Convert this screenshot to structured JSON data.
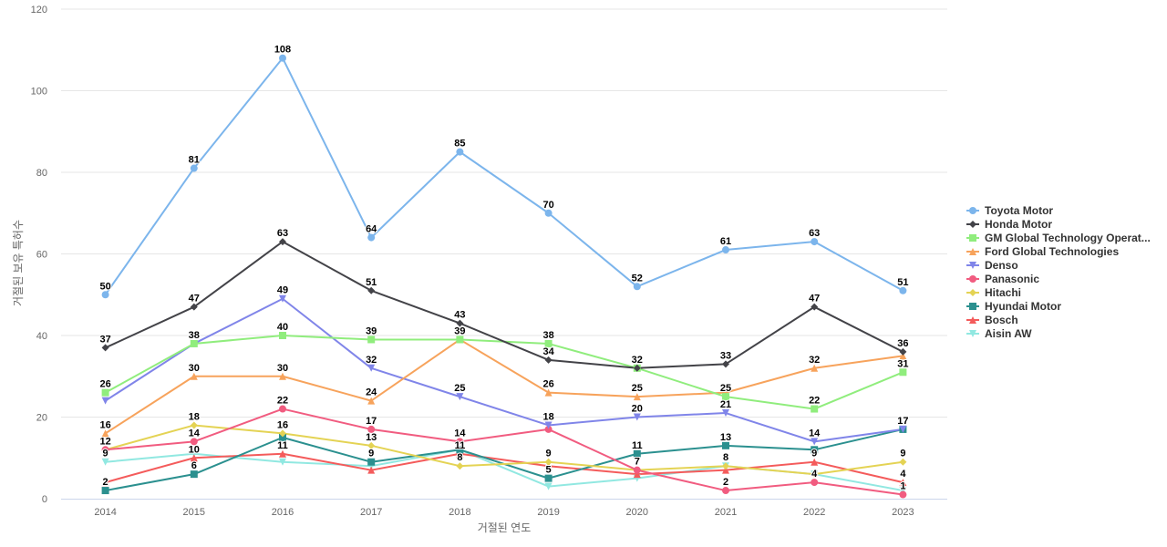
{
  "chart_data": {
    "type": "line",
    "xlabel": "거절된 연도",
    "ylabel": "거절된 보유 특허수",
    "ylim": [
      0,
      120
    ],
    "yticks": [
      0,
      20,
      40,
      60,
      80,
      100,
      120
    ],
    "categories": [
      "2014",
      "2015",
      "2016",
      "2017",
      "2018",
      "2019",
      "2020",
      "2021",
      "2022",
      "2023"
    ],
    "grid": "horizontal",
    "legend_position": "right",
    "series": [
      {
        "name": "Toyota Motor",
        "color": "#7cb5ec",
        "marker": "circle",
        "values": [
          50,
          81,
          108,
          64,
          85,
          70,
          52,
          61,
          63,
          51
        ]
      },
      {
        "name": "Honda Motor",
        "color": "#434348",
        "marker": "diamond",
        "values": [
          37,
          47,
          63,
          51,
          43,
          34,
          32,
          33,
          47,
          36
        ]
      },
      {
        "name": "GM Global Technology Operat...",
        "color": "#90ed7d",
        "marker": "square",
        "values": [
          26,
          38,
          40,
          39,
          39,
          38,
          32,
          25,
          22,
          31
        ]
      },
      {
        "name": "Ford Global Technologies",
        "color": "#f7a35c",
        "marker": "triangle",
        "values": [
          16,
          30,
          30,
          24,
          39,
          26,
          25,
          26,
          32,
          35
        ]
      },
      {
        "name": "Denso",
        "color": "#8085e9",
        "marker": "triangle-down",
        "values": [
          24,
          38,
          49,
          32,
          25,
          18,
          20,
          21,
          14,
          17
        ]
      },
      {
        "name": "Panasonic",
        "color": "#f15c80",
        "marker": "circle",
        "values": [
          12,
          14,
          22,
          17,
          14,
          17,
          7,
          2,
          4,
          1
        ]
      },
      {
        "name": "Hitachi",
        "color": "#e4d354",
        "marker": "diamond",
        "values": [
          12,
          18,
          16,
          13,
          8,
          9,
          7,
          8,
          6,
          9
        ]
      },
      {
        "name": "Hyundai Motor",
        "color": "#2b908f",
        "marker": "square",
        "values": [
          2,
          6,
          15,
          9,
          12,
          5,
          11,
          13,
          12,
          17
        ]
      },
      {
        "name": "Bosch",
        "color": "#f45b5b",
        "marker": "triangle",
        "values": [
          4,
          10,
          11,
          7,
          11,
          8,
          6,
          7,
          9,
          4
        ]
      },
      {
        "name": "Aisin AW",
        "color": "#91e8e1",
        "marker": "triangle-down",
        "values": [
          9,
          11,
          9,
          8,
          12,
          3,
          5,
          8,
          6,
          2
        ]
      }
    ],
    "data_labels": [
      {
        "x": "2014",
        "y": 50,
        "text": "50"
      },
      {
        "x": "2015",
        "y": 81,
        "text": "81"
      },
      {
        "x": "2016",
        "y": 108,
        "text": "108"
      },
      {
        "x": "2017",
        "y": 64,
        "text": "64"
      },
      {
        "x": "2018",
        "y": 85,
        "text": "85"
      },
      {
        "x": "2019",
        "y": 70,
        "text": "70"
      },
      {
        "x": "2020",
        "y": 52,
        "text": "52"
      },
      {
        "x": "2021",
        "y": 61,
        "text": "61"
      },
      {
        "x": "2022",
        "y": 63,
        "text": "63"
      },
      {
        "x": "2023",
        "y": 51,
        "text": "51"
      },
      {
        "x": "2014",
        "y": 37,
        "text": "37"
      },
      {
        "x": "2015",
        "y": 47,
        "text": "47"
      },
      {
        "x": "2016",
        "y": 63,
        "text": "63"
      },
      {
        "x": "2017",
        "y": 51,
        "text": "51"
      },
      {
        "x": "2018",
        "y": 43,
        "text": "43"
      },
      {
        "x": "2019",
        "y": 34,
        "text": "34"
      },
      {
        "x": "2020",
        "y": 32,
        "text": "32"
      },
      {
        "x": "2021",
        "y": 33,
        "text": "33"
      },
      {
        "x": "2022",
        "y": 47,
        "text": "47"
      },
      {
        "x": "2023",
        "y": 36,
        "text": "36"
      },
      {
        "x": "2014",
        "y": 26,
        "text": "26"
      },
      {
        "x": "2015",
        "y": 38,
        "text": "38"
      },
      {
        "x": "2016",
        "y": 40,
        "text": "40"
      },
      {
        "x": "2017",
        "y": 39,
        "text": "39"
      },
      {
        "x": "2018",
        "y": 39,
        "text": "39"
      },
      {
        "x": "2019",
        "y": 38,
        "text": "38"
      },
      {
        "x": "2021",
        "y": 25,
        "text": "25"
      },
      {
        "x": "2022",
        "y": 22,
        "text": "22"
      },
      {
        "x": "2023",
        "y": 31,
        "text": "31"
      },
      {
        "x": "2014",
        "y": 16,
        "text": "16"
      },
      {
        "x": "2015",
        "y": 30,
        "text": "30"
      },
      {
        "x": "2016",
        "y": 30,
        "text": "30"
      },
      {
        "x": "2017",
        "y": 24,
        "text": "24"
      },
      {
        "x": "2019",
        "y": 26,
        "text": "26"
      },
      {
        "x": "2020",
        "y": 25,
        "text": "25"
      },
      {
        "x": "2022",
        "y": 32,
        "text": "32"
      },
      {
        "x": "2016",
        "y": 49,
        "text": "49"
      },
      {
        "x": "2017",
        "y": 32,
        "text": "32"
      },
      {
        "x": "2018",
        "y": 25,
        "text": "25"
      },
      {
        "x": "2019",
        "y": 18,
        "text": "18"
      },
      {
        "x": "2020",
        "y": 20,
        "text": "20"
      },
      {
        "x": "2021",
        "y": 21,
        "text": "21"
      },
      {
        "x": "2022",
        "y": 14,
        "text": "14"
      },
      {
        "x": "2023",
        "y": 17,
        "text": "17"
      },
      {
        "x": "2014",
        "y": 12,
        "text": "12"
      },
      {
        "x": "2015",
        "y": 14,
        "text": "14"
      },
      {
        "x": "2016",
        "y": 22,
        "text": "22"
      },
      {
        "x": "2017",
        "y": 17,
        "text": "17"
      },
      {
        "x": "2018",
        "y": 14,
        "text": "14"
      },
      {
        "x": "2021",
        "y": 2,
        "text": "2"
      },
      {
        "x": "2022",
        "y": 4,
        "text": "4"
      },
      {
        "x": "2023",
        "y": 1,
        "text": "1"
      },
      {
        "x": "2015",
        "y": 18,
        "text": "18"
      },
      {
        "x": "2016",
        "y": 16,
        "text": "16"
      },
      {
        "x": "2017",
        "y": 13,
        "text": "13"
      },
      {
        "x": "2018",
        "y": 8,
        "text": "8"
      },
      {
        "x": "2019",
        "y": 9,
        "text": "9"
      },
      {
        "x": "2020",
        "y": 7,
        "text": "7"
      },
      {
        "x": "2021",
        "y": 8,
        "text": "8"
      },
      {
        "x": "2022",
        "y": 9,
        "text": "9"
      },
      {
        "x": "2023",
        "y": 9,
        "text": "9"
      },
      {
        "x": "2014",
        "y": 2,
        "text": "2"
      },
      {
        "x": "2015",
        "y": 6,
        "text": "6"
      },
      {
        "x": "2018",
        "y": 11,
        "text": "11"
      },
      {
        "x": "2019",
        "y": 5,
        "text": "5"
      },
      {
        "x": "2020",
        "y": 11,
        "text": "11"
      },
      {
        "x": "2021",
        "y": 13,
        "text": "13"
      },
      {
        "x": "2015",
        "y": 10,
        "text": "10"
      },
      {
        "x": "2016",
        "y": 11,
        "text": "11"
      },
      {
        "x": "2017",
        "y": 9,
        "text": "9"
      },
      {
        "x": "2023",
        "y": 4,
        "text": "4"
      },
      {
        "x": "2014",
        "y": 9,
        "text": "9"
      }
    ]
  }
}
